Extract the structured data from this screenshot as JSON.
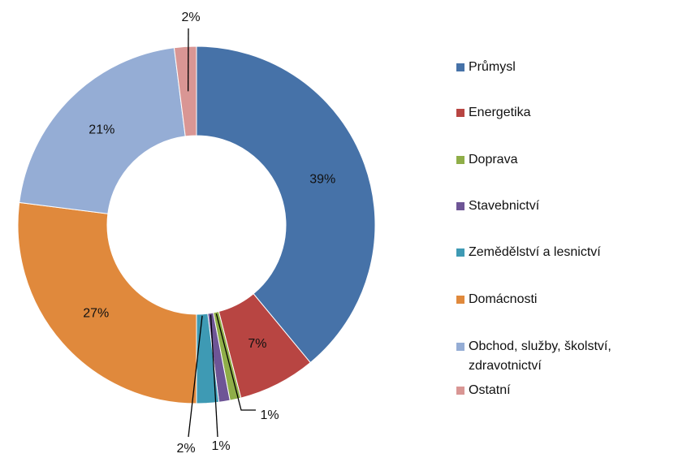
{
  "chart_data": {
    "type": "donut",
    "categories": [
      "Průmysl",
      "Energetika",
      "Doprava",
      "Stavebnictví",
      "Zemědělství a lesnictví",
      "Domácnosti",
      "Obchod, služby, školství, zdravotnictví",
      "Ostatní"
    ],
    "values": [
      39,
      7,
      1,
      1,
      2,
      27,
      21,
      2
    ],
    "value_labels": [
      "39%",
      "7%",
      "1%",
      "1%",
      "2%",
      "27%",
      "21%",
      "2%"
    ],
    "colors": [
      "#4672a8",
      "#b84542",
      "#8fae48",
      "#6e5596",
      "#3e9ab4",
      "#e0893c",
      "#95add5",
      "#d99694"
    ],
    "legend": "right"
  }
}
